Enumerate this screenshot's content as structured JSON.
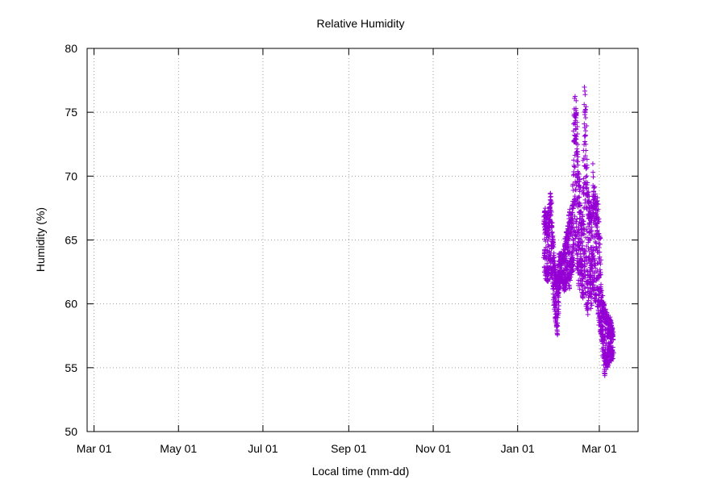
{
  "chart_data": {
    "type": "scatter",
    "title": "Relative Humidity",
    "xlabel": "Local time (mm-dd)",
    "ylabel": "Humidity (%)",
    "xlim": [
      "2022-02-24",
      "2023-03-29"
    ],
    "ylim": [
      50,
      80
    ],
    "grid": true,
    "marker": "plus",
    "color": "#9400d3",
    "x_ticks": [
      {
        "date": "2022-03-01",
        "label": "Mar 01"
      },
      {
        "date": "2022-05-01",
        "label": "May 01"
      },
      {
        "date": "2022-07-01",
        "label": "Jul 01"
      },
      {
        "date": "2022-09-01",
        "label": "Sep 01"
      },
      {
        "date": "2022-11-01",
        "label": "Nov 01"
      },
      {
        "date": "2023-01-01",
        "label": "Jan 01"
      },
      {
        "date": "2023-03-01",
        "label": "Mar 01"
      }
    ],
    "y_ticks": [
      50,
      55,
      60,
      65,
      70,
      75,
      80
    ],
    "series": [
      {
        "x_start": "2023-01-20",
        "x_end": "2023-03-11",
        "y_envelope": [
          [
            62.5,
            67.5
          ],
          [
            62.0,
            67.5
          ],
          [
            61.5,
            67.0
          ],
          [
            61.8,
            67.3
          ],
          [
            62.0,
            69.2
          ],
          [
            62.0,
            66.0
          ],
          [
            59.5,
            64.0
          ],
          [
            58.5,
            62.5
          ],
          [
            57.2,
            62.0
          ],
          [
            61.0,
            64.0
          ],
          [
            62.0,
            64.0
          ],
          [
            61.5,
            64.0
          ],
          [
            61.0,
            64.5
          ],
          [
            61.0,
            65.5
          ],
          [
            62.0,
            66.0
          ],
          [
            61.0,
            67.5
          ],
          [
            62.5,
            67.0
          ],
          [
            62.0,
            68.5
          ],
          [
            64.0,
            77.3
          ],
          [
            64.0,
            76.0
          ],
          [
            62.0,
            72.0
          ],
          [
            61.0,
            70.0
          ],
          [
            62.0,
            67.0
          ],
          [
            60.0,
            66.0
          ],
          [
            61.5,
            77.5
          ],
          [
            59.5,
            76.0
          ],
          [
            59.0,
            70.0
          ],
          [
            61.0,
            67.5
          ],
          [
            59.5,
            68.0
          ],
          [
            61.0,
            71.2
          ],
          [
            60.5,
            69.0
          ],
          [
            59.5,
            68.0
          ],
          [
            59.0,
            68.5
          ],
          [
            58.0,
            66.0
          ],
          [
            57.0,
            61.0
          ],
          [
            56.0,
            60.5
          ],
          [
            54.3,
            60.0
          ],
          [
            55.0,
            59.5
          ],
          [
            55.0,
            59.0
          ],
          [
            55.5,
            59.0
          ],
          [
            55.5,
            58.5
          ],
          [
            55.5,
            58.0
          ]
        ]
      }
    ]
  }
}
